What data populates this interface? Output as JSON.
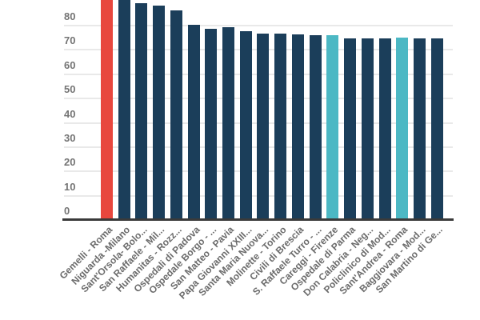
{
  "chart_data": {
    "type": "bar",
    "title": "",
    "xlabel": "",
    "ylabel": "",
    "categories": [
      "Gemelli - Roma",
      "Niguarda -Milano",
      "Sant'Orsola- Bolo...",
      "San Raffaele - Mil...",
      "Humanitas - Rozz...",
      "Ospedali di Padova",
      "Ospedale Borgo - ...",
      "San Matteo - Pavia",
      "Papa Giovanni XXIII...",
      "Santa Maria Nuova...",
      "Molinette - Torino",
      "Civili di Brescia",
      "S. Raffaele Turro - ...",
      "Careggi - Firenze",
      "Ospedale di Parma",
      "Don Calabria - Neg...",
      "Policlinico di Mod...",
      "Sant'Andrea - Roma",
      "Baggiovara - Mod...",
      "San Martino di Ge..."
    ],
    "values": [
      94,
      90.5,
      89,
      88,
      86,
      80,
      78.5,
      79,
      77.5,
      76.5,
      76.5,
      76,
      75.7,
      75.8,
      74.4,
      74.5,
      74.5,
      74.7,
      74.5,
      74.5
    ],
    "yticks": [
      0,
      10,
      20,
      30,
      40,
      50,
      60,
      70,
      80
    ],
    "ytick_labels": [
      "0",
      "10",
      "20",
      "30",
      "40",
      "50",
      "60",
      "70",
      "80"
    ],
    "ylim": [
      0,
      90
    ],
    "grid": true,
    "legend": false,
    "colors": {
      "default": "#1b3e5a",
      "highlights": [
        {
          "index": 0,
          "color": "#e8473e"
        },
        {
          "index": 13,
          "color": "#4cb8c4"
        },
        {
          "index": 17,
          "color": "#4cb8c4"
        }
      ]
    },
    "style": {
      "background": "#ffffff",
      "gridline_color": "#e9e9e9",
      "baseline_color": "#3a3a3a",
      "ytick_color": "#747474",
      "xlabel_color": "#6b6b6b"
    }
  }
}
